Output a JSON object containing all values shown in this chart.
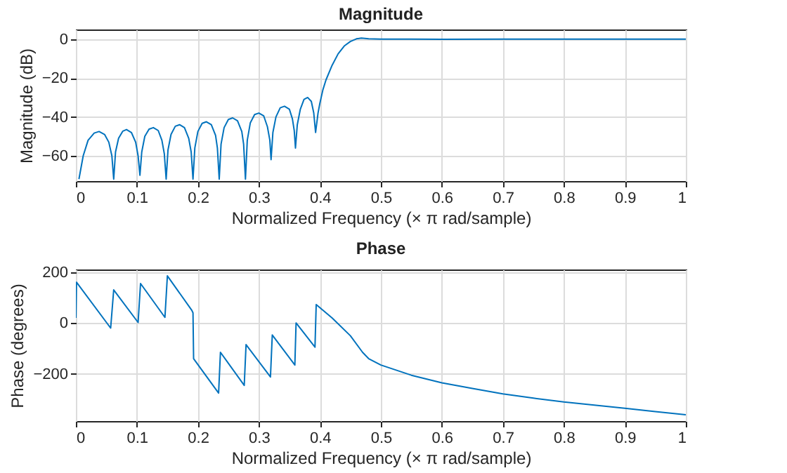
{
  "chart_data": [
    {
      "type": "line",
      "title": "Magnitude",
      "xlabel": "Normalized Frequency  (× π rad/sample)",
      "ylabel": "Magnitude (dB)",
      "xlim": [
        0,
        1
      ],
      "xticks": [
        0,
        0.1,
        0.2,
        0.3,
        0.4,
        0.5,
        0.6,
        0.7,
        0.8,
        0.9,
        1
      ],
      "ylim": [
        -73,
        5
      ],
      "yticks": [
        -60,
        -40,
        -20,
        0
      ],
      "grid": true,
      "line_style": "solid",
      "series": [
        {
          "color": "#0072bd",
          "x": [
            0.005,
            0.012,
            0.02,
            0.03,
            0.038,
            0.047,
            0.054,
            0.059,
            0.062,
            0.065,
            0.07,
            0.077,
            0.083,
            0.091,
            0.098,
            0.102,
            0.105,
            0.108,
            0.113,
            0.12,
            0.127,
            0.135,
            0.141,
            0.145,
            0.148,
            0.151,
            0.156,
            0.163,
            0.17,
            0.178,
            0.185,
            0.189,
            0.192,
            0.195,
            0.2,
            0.207,
            0.214,
            0.222,
            0.229,
            0.232,
            0.235,
            0.238,
            0.243,
            0.25,
            0.257,
            0.265,
            0.272,
            0.275,
            0.278,
            0.281,
            0.286,
            0.293,
            0.3,
            0.308,
            0.314,
            0.318,
            0.32,
            0.323,
            0.328,
            0.335,
            0.342,
            0.35,
            0.355,
            0.358,
            0.36,
            0.363,
            0.368,
            0.374,
            0.38,
            0.386,
            0.39,
            0.393,
            0.397,
            0.4,
            0.405,
            0.41,
            0.42,
            0.43,
            0.44,
            0.45,
            0.46,
            0.468,
            0.48,
            0.5,
            0.55,
            0.6,
            0.7,
            0.8,
            0.9,
            1
          ],
          "values": [
            -72,
            -60,
            -52,
            -48.3,
            -47.5,
            -49,
            -53,
            -60,
            -72,
            -58,
            -51,
            -47.3,
            -46.5,
            -48,
            -53,
            -60,
            -70,
            -58,
            -50,
            -46.3,
            -45.5,
            -47,
            -52,
            -59,
            -72,
            -57,
            -49,
            -44.8,
            -44,
            -45.5,
            -51,
            -58,
            -72,
            -56,
            -47.5,
            -43.3,
            -42.5,
            -44,
            -49.5,
            -56,
            -72,
            -54,
            -45.5,
            -41.3,
            -40.5,
            -42,
            -47.5,
            -54,
            -72,
            -52,
            -43,
            -38.8,
            -38,
            -39.5,
            -45,
            -52,
            -62,
            -48,
            -40,
            -35.3,
            -34.5,
            -36,
            -41,
            -47,
            -56,
            -44,
            -36,
            -31,
            -30,
            -32,
            -38,
            -48,
            -38,
            -33,
            -26,
            -21,
            -13.5,
            -7.5,
            -3.5,
            -1.2,
            0.2,
            0.6,
            0.2,
            0,
            0,
            -0.1,
            0,
            0,
            0,
            0
          ]
        }
      ]
    },
    {
      "type": "line",
      "title": "Phase",
      "xlabel": "Normalized Frequency  (× π rad/sample)",
      "ylabel": "Phase (degrees)",
      "xlim": [
        0,
        1
      ],
      "xticks": [
        0,
        0.1,
        0.2,
        0.3,
        0.4,
        0.5,
        0.6,
        0.7,
        0.8,
        0.9,
        1
      ],
      "ylim": [
        -385,
        210
      ],
      "yticks": [
        -200,
        0,
        200
      ],
      "grid": true,
      "line_style": "solid",
      "series": [
        {
          "color": "#0072bd",
          "x": [
            0,
            0.001,
            0.057,
            0.062,
            0.102,
            0.106,
            0.146,
            0.15,
            0.19,
            0.192,
            0.193,
            0.234,
            0.237,
            0.276,
            0.279,
            0.319,
            0.322,
            0.359,
            0.361,
            0.392,
            0.394,
            0.42,
            0.45,
            0.47,
            0.48,
            0.5,
            0.55,
            0.6,
            0.65,
            0.7,
            0.75,
            0.8,
            0.85,
            0.9,
            0.95,
            1
          ],
          "values": [
            20,
            160,
            -20,
            130,
            2,
            155,
            22,
            185,
            50,
            40,
            -140,
            -275,
            -115,
            -245,
            -85,
            -212,
            -47,
            -165,
            0,
            -95,
            72,
            20,
            -50,
            -115,
            -140,
            -165,
            -205,
            -235,
            -257,
            -278,
            -295,
            -310,
            -322,
            -335,
            -348,
            -360
          ]
        }
      ]
    }
  ]
}
